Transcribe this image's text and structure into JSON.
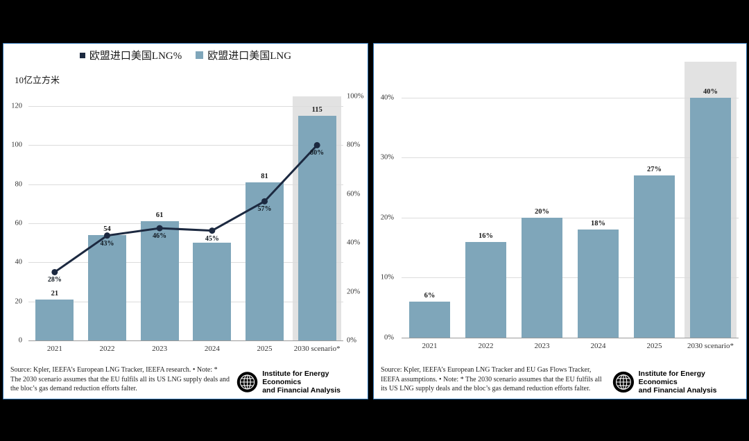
{
  "page": {
    "background": "#000000",
    "panel_border": "#2e74b5"
  },
  "chart_data": [
    {
      "id": "left",
      "type": "bar",
      "title": "",
      "unit_label": "10亿立方米",
      "legend": [
        {
          "label": "欧盟进口美国LNG%",
          "color": "#1c2940"
        },
        {
          "label": "欧盟进口美国LNG",
          "color": "#7fa6ba"
        }
      ],
      "categories": [
        "2021",
        "2022",
        "2023",
        "2024",
        "2025",
        "2030 scenario*"
      ],
      "series": [
        {
          "name": "欧盟进口美国LNG",
          "type": "bar",
          "axis": "left",
          "color": "#7fa6ba",
          "values": [
            21,
            54,
            61,
            50,
            81,
            115
          ],
          "labels": [
            "21",
            "54",
            "61",
            "",
            "81",
            "115"
          ]
        },
        {
          "name": "欧盟进口美国LNG%",
          "type": "line",
          "axis": "right",
          "color": "#1c2940",
          "values": [
            28,
            43,
            46,
            45,
            57,
            80
          ],
          "labels": [
            "28%",
            "43%",
            "46%",
            "45%",
            "57%",
            "80%"
          ]
        }
      ],
      "left_axis": {
        "max": 125,
        "ticks": [
          {
            "value": 0,
            "label": "0"
          },
          {
            "value": 20,
            "label": "20"
          },
          {
            "value": 40,
            "label": "40"
          },
          {
            "value": 60,
            "label": "60"
          },
          {
            "value": 80,
            "label": "80"
          },
          {
            "value": 100,
            "label": "100"
          },
          {
            "value": 120,
            "label": "120"
          }
        ]
      },
      "right_axis": {
        "max": 100,
        "ticks": [
          {
            "value": 0,
            "label": "0%"
          },
          {
            "value": 20,
            "label": "20%"
          },
          {
            "value": 40,
            "label": "40%"
          },
          {
            "value": 60,
            "label": "60%"
          },
          {
            "value": 80,
            "label": "80%"
          },
          {
            "value": 100,
            "label": "100%"
          }
        ]
      },
      "highlight_index": 5,
      "highlight_color": "#e2e2e2",
      "grid": true,
      "source": "Source: Kpler, IEEFA’s European LNG Tracker, IEEFA research. • Note: * The 2030 scenario assumes that the EU fulfils all its US LNG supply deals and the bloc’s gas demand reduction efforts falter.",
      "logo": {
        "line1": "Institute for Energy Economics",
        "line2": "and Financial Analysis"
      }
    },
    {
      "id": "right",
      "type": "bar",
      "title": "",
      "categories": [
        "2021",
        "2022",
        "2023",
        "2024",
        "2025",
        "2030 scenario*"
      ],
      "series": [
        {
          "type": "bar",
          "axis": "left",
          "color": "#7fa6ba",
          "values": [
            6,
            16,
            20,
            18,
            27,
            40
          ],
          "labels": [
            "6%",
            "16%",
            "20%",
            "18%",
            "27%",
            "40%"
          ]
        }
      ],
      "left_axis": {
        "max": 46,
        "ticks": [
          {
            "value": 0,
            "label": "0%"
          },
          {
            "value": 10,
            "label": "10%"
          },
          {
            "value": 20,
            "label": "20%"
          },
          {
            "value": 30,
            "label": "30%"
          },
          {
            "value": 40,
            "label": "40%"
          }
        ]
      },
      "highlight_index": 5,
      "highlight_color": "#e2e2e2",
      "grid": true,
      "source": "Source: Kpler, IEEFA’s European LNG Tracker and EU Gas Flows Tracker, IEEFA assumptions. • Note: * The 2030 scenario assumes that the EU fulfils all its US LNG supply deals and the bloc’s gas demand reduction efforts falter.",
      "logo": {
        "line1": "Institute for Energy Economics",
        "line2": "and Financial Analysis"
      }
    }
  ]
}
